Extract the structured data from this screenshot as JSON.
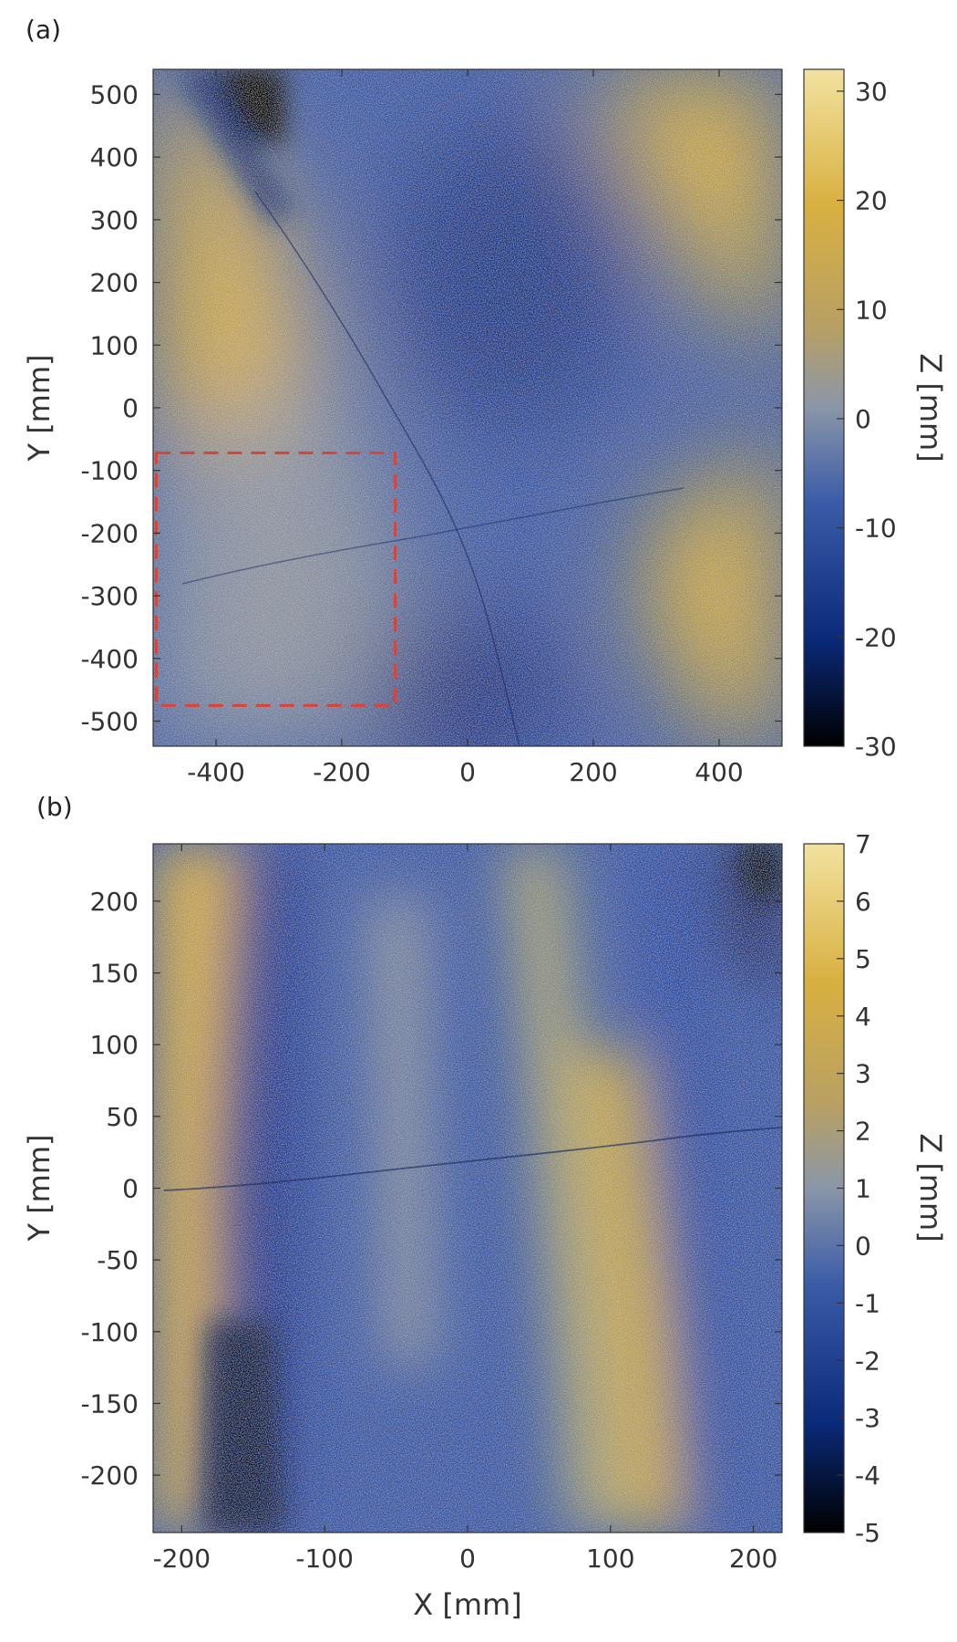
{
  "colors": {
    "colormap": [
      "#000000",
      "#0a2a7a",
      "#3a5ca8",
      "#8a96a8",
      "#b8a064",
      "#d8b040",
      "#f2e2a0"
    ],
    "inset_box": "#d9443a",
    "axis": "#333333"
  },
  "chart_data": [
    {
      "type": "heatmap",
      "panel_label": "(a)",
      "title": "",
      "xlabel": "",
      "ylabel": "Y [mm]",
      "colorbar_label": "Z [mm]",
      "xlim": [
        -500,
        500
      ],
      "ylim": [
        -540,
        540
      ],
      "x_ticks": [
        -400,
        -200,
        0,
        200,
        400
      ],
      "y_ticks": [
        500,
        400,
        300,
        200,
        100,
        0,
        -100,
        -200,
        -300,
        -400,
        -500
      ],
      "clim": [
        -30,
        32
      ],
      "colorbar_ticks": [
        30,
        20,
        10,
        0,
        -10,
        -20,
        -30
      ],
      "inset_region": {
        "x": [
          -495,
          -115
        ],
        "y": [
          -475,
          -72
        ]
      }
    },
    {
      "type": "heatmap",
      "panel_label": "(b)",
      "title": "",
      "xlabel": "X [mm]",
      "ylabel": "Y [mm]",
      "colorbar_label": "Z [mm]",
      "xlim": [
        -220,
        220
      ],
      "ylim": [
        -240,
        240
      ],
      "x_ticks": [
        -200,
        -100,
        0,
        100,
        200
      ],
      "y_ticks": [
        200,
        150,
        100,
        50,
        0,
        -50,
        -100,
        -150,
        -200
      ],
      "clim": [
        -5,
        7
      ],
      "colorbar_ticks": [
        7,
        6,
        5,
        4,
        3,
        2,
        1,
        0,
        -1,
        -2,
        -3,
        -4,
        -5
      ]
    }
  ]
}
